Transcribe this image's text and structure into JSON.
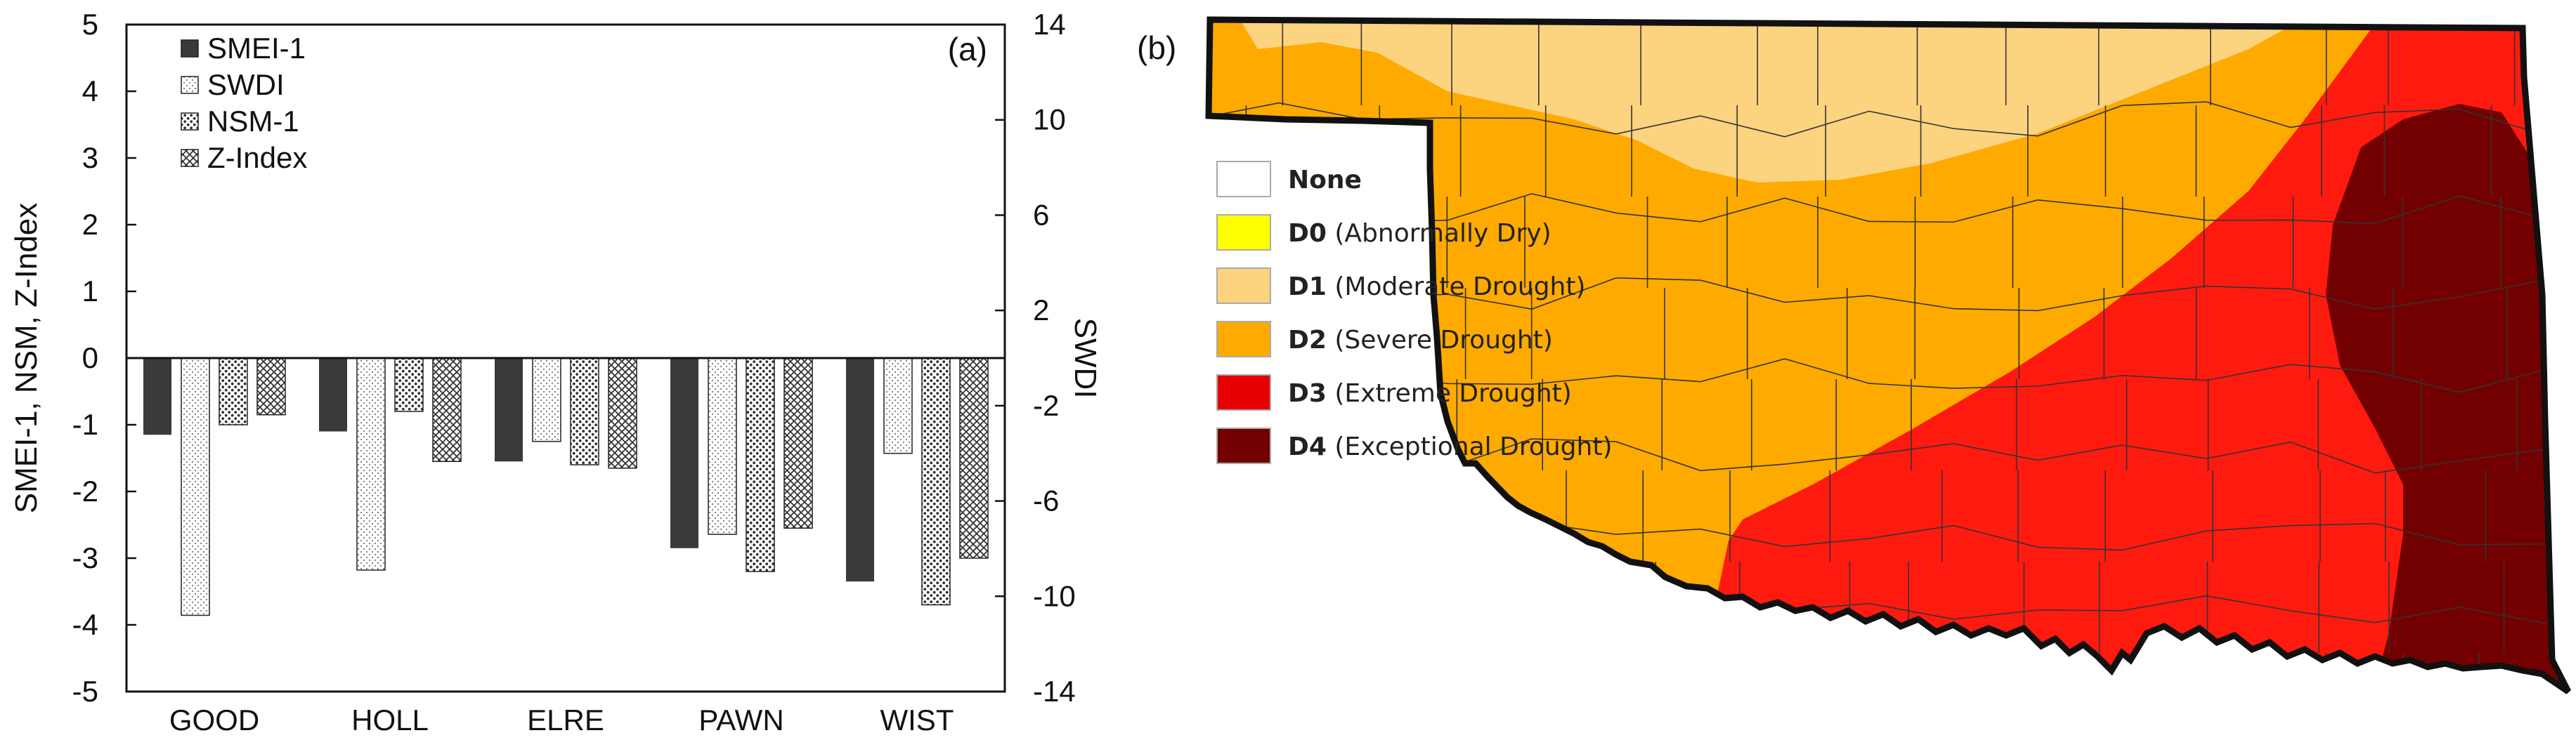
{
  "panel_a": {
    "label": "(a)",
    "chart_data": {
      "type": "bar",
      "categories": [
        "GOOD",
        "HOLL",
        "ELRE",
        "PAWN",
        "WIST"
      ],
      "ylabel": "SMEI-1, NSM, Z-Index",
      "y2label": "SWDI",
      "ylim": [
        -5,
        5
      ],
      "y2lim": [
        -14,
        14
      ],
      "yticks": [
        "5",
        "4",
        "3",
        "2",
        "1",
        "0",
        "-1",
        "-2",
        "-3",
        "-4",
        "-5"
      ],
      "y2ticks": [
        "14",
        "10",
        "6",
        "2",
        "-2",
        "-6",
        "-10",
        "-14"
      ],
      "legend_position": "top-left",
      "series": [
        {
          "name": "SMEI-1",
          "axis": "left",
          "pattern": "solid-dark",
          "values": [
            -1.15,
            -1.1,
            -1.55,
            -2.85,
            -3.35
          ]
        },
        {
          "name": "SWDI",
          "axis": "right",
          "pattern": "fine-dots",
          "values": [
            -10.8,
            -8.9,
            -3.5,
            -7.4,
            -4.0
          ]
        },
        {
          "name": "NSM-1",
          "axis": "left",
          "pattern": "dots",
          "values": [
            -1.0,
            -0.8,
            -1.6,
            -3.2,
            -3.7
          ]
        },
        {
          "name": "Z-Index",
          "axis": "left",
          "pattern": "crosshatch",
          "values": [
            -0.85,
            -1.55,
            -1.65,
            -2.55,
            -3.0
          ]
        }
      ]
    }
  },
  "panel_b": {
    "label": "(b)",
    "legend": [
      {
        "code": "None",
        "desc": "",
        "color": "#ffffff"
      },
      {
        "code": "D0",
        "desc": "(Abnormally Dry)",
        "color": "#ffff00"
      },
      {
        "code": "D1",
        "desc": "(Moderate Drought)",
        "color": "#fcd37f"
      },
      {
        "code": "D2",
        "desc": "(Severe Drought)",
        "color": "#ffaa00"
      },
      {
        "code": "D3",
        "desc": "(Extreme Drought)",
        "color": "#e60000"
      },
      {
        "code": "D4",
        "desc": "(Exceptional Drought)",
        "color": "#730000"
      }
    ],
    "map_colors": {
      "d1": "#fcd37f",
      "d2": "#ffaa00",
      "d3": "#ff1a10",
      "d4": "#730000"
    }
  }
}
